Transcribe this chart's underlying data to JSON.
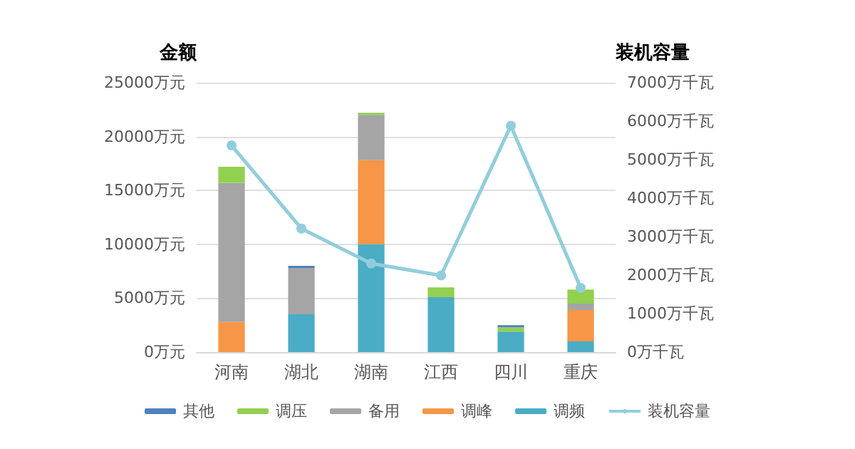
{
  "chart_data": {
    "type": "bar",
    "stacked": true,
    "ylabel": "金额",
    "y2label": "装机容量",
    "categories": [
      "河南",
      "湖北",
      "湖南",
      "江西",
      "四川",
      "重庆"
    ],
    "series": [
      {
        "name": "调频",
        "color": "#4bacc6",
        "values": [
          0,
          3500,
          10000,
          5100,
          1900,
          1000
        ]
      },
      {
        "name": "调峰",
        "color": "#f79646",
        "values": [
          2800,
          0,
          7800,
          0,
          0,
          2900
        ]
      },
      {
        "name": "备用",
        "color": "#a5a5a5",
        "values": [
          12900,
          4300,
          4200,
          0,
          0,
          600
        ]
      },
      {
        "name": "调压",
        "color": "#92d050",
        "values": [
          1500,
          0,
          200,
          900,
          400,
          1300
        ]
      },
      {
        "name": "其他",
        "color": "#4f81bd",
        "values": [
          0,
          200,
          0,
          0,
          200,
          0
        ]
      },
      {
        "name": "装机容量",
        "type": "line",
        "axis": "y2",
        "color": "#92cddc",
        "marker": "circle",
        "values": [
          5370,
          3210,
          2300,
          1990,
          5880,
          1670
        ]
      }
    ],
    "ylim": [
      0,
      25000
    ],
    "yticks": [
      {
        "value": 0,
        "label": "0万元"
      },
      {
        "value": 5000,
        "label": "5000万元"
      },
      {
        "value": 10000,
        "label": "10000万元"
      },
      {
        "value": 15000,
        "label": "15000万元"
      },
      {
        "value": 20000,
        "label": "20000万元"
      },
      {
        "value": 25000,
        "label": "25000万元"
      }
    ],
    "y2lim": [
      0,
      7000
    ],
    "y2ticks": [
      {
        "value": 0,
        "label": "0万千瓦"
      },
      {
        "value": 1000,
        "label": "1000万千瓦"
      },
      {
        "value": 2000,
        "label": "2000万千瓦"
      },
      {
        "value": 3000,
        "label": "3000万千瓦"
      },
      {
        "value": 4000,
        "label": "4000万千瓦"
      },
      {
        "value": 5000,
        "label": "5000万千瓦"
      },
      {
        "value": 6000,
        "label": "6000万千瓦"
      },
      {
        "value": 7000,
        "label": "7000万千瓦"
      }
    ],
    "grid": "y",
    "legend": "bottom"
  }
}
